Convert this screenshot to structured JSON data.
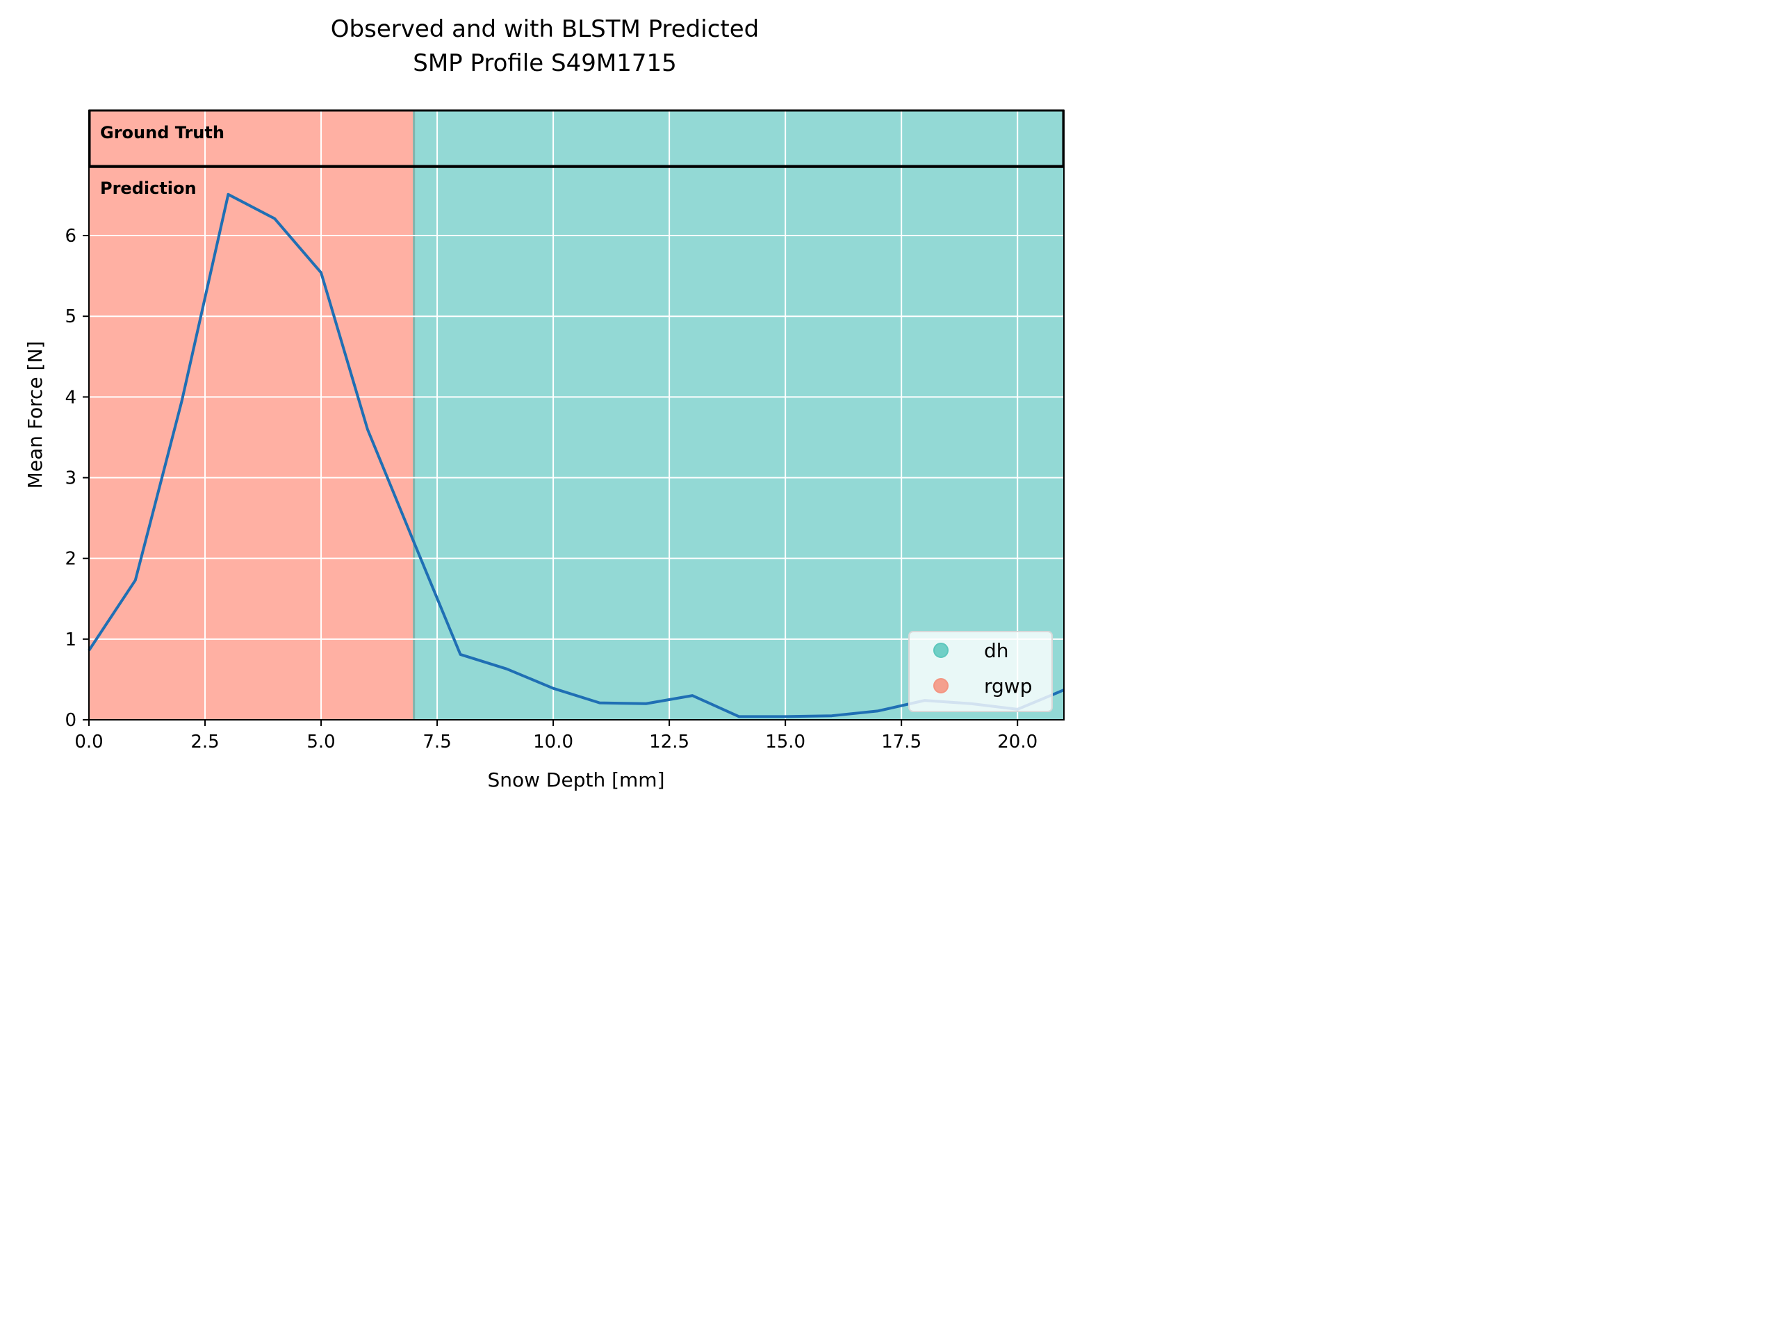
{
  "chart_data": {
    "type": "line",
    "title_line1": "Observed and with BLSTM Predicted",
    "title_line2": "SMP Profile S49M1715",
    "xlabel": "Snow Depth [mm]",
    "ylabel": "Mean Force [N]",
    "xlim": [
      0,
      21
    ],
    "ylim": [
      0,
      7.55
    ],
    "xticks": [
      0.0,
      2.5,
      5.0,
      7.5,
      10.0,
      12.5,
      15.0,
      17.5,
      20.0
    ],
    "xtick_labels": [
      "0.0",
      "2.5",
      "5.0",
      "7.5",
      "10.0",
      "12.5",
      "15.0",
      "17.5",
      "20.0"
    ],
    "yticks": [
      0,
      1,
      2,
      3,
      4,
      5,
      6
    ],
    "ytick_labels": [
      "0",
      "1",
      "2",
      "3",
      "4",
      "5",
      "6"
    ],
    "grid": true,
    "series": [
      {
        "color": "#1f6fb4",
        "x": [
          0,
          1,
          2,
          3,
          4,
          5,
          6,
          7,
          8,
          9,
          10,
          11,
          12,
          13,
          14,
          15,
          16,
          17,
          18,
          19,
          20,
          21
        ],
        "y": [
          0.86,
          1.73,
          3.95,
          6.51,
          6.21,
          5.54,
          3.6,
          2.2,
          0.81,
          0.63,
          0.39,
          0.21,
          0.2,
          0.3,
          0.04,
          0.04,
          0.05,
          0.11,
          0.24,
          0.2,
          0.13,
          0.37
        ]
      }
    ],
    "band_ground_truth_label": "Ground Truth",
    "band_prediction_label": "Prediction",
    "regions": [
      {
        "label": "rgwp",
        "x_start": 0,
        "x_end": 7,
        "color": "#ffb0a3"
      },
      {
        "label": "dh",
        "x_start": 7,
        "x_end": 21,
        "color": "#93d9d5"
      }
    ],
    "legend": {
      "placement": "lower-right",
      "entries": [
        {
          "label": "dh",
          "color": "#6fcfc6"
        },
        {
          "label": "rgwp",
          "color": "#f4a08e"
        }
      ]
    },
    "ground_truth_divider_y": 6.85
  }
}
